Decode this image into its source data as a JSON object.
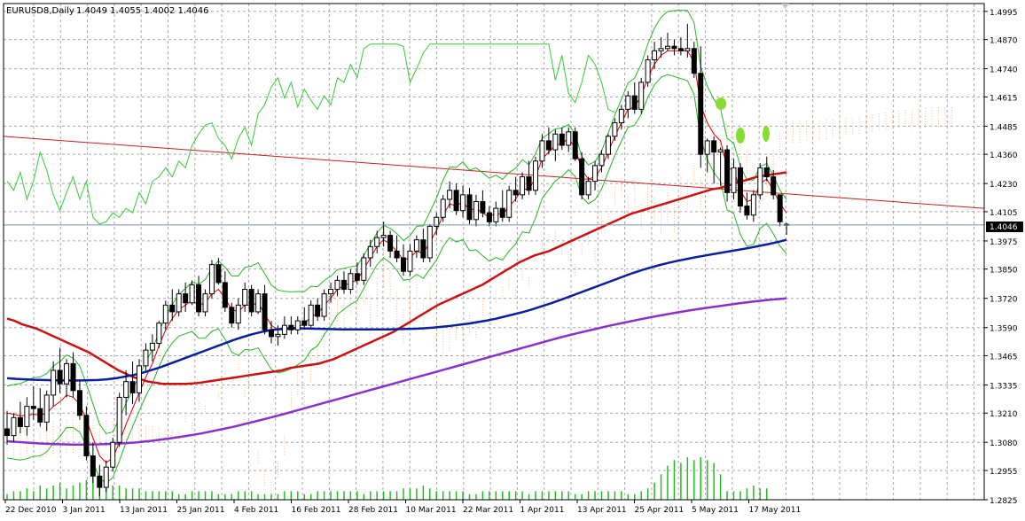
{
  "header": {
    "symbol": "EURUSD8,Daily",
    "ohlc": "1.4049 1.4055 1.4002 1.4046"
  },
  "current_price_label": "1.4046",
  "colors": {
    "bull_candle": "#ffffff",
    "bear_candle": "#000000",
    "ma_fast": "#d40000",
    "ma_mid": "#cc1111",
    "ma_slow": "#0a1fa0",
    "ma_long": "#8a32c8",
    "bollinger": "#22b822",
    "chikou": "#33cc33",
    "cloud": "#f4a460",
    "volume": "#22bb22",
    "trendline": "#c81e1e",
    "grid": "#a8a8a8"
  },
  "chart_data": {
    "type": "candlestick",
    "y_ticks": [
      "1.4995",
      "1.4870",
      "1.4740",
      "1.4615",
      "1.4485",
      "1.4360",
      "1.4230",
      "1.4105",
      "1.3975",
      "1.3850",
      "1.3720",
      "1.3590",
      "1.3465",
      "1.3335",
      "1.3210",
      "1.3080",
      "1.2955",
      "1.2825"
    ],
    "ylim": [
      1.2825,
      1.503
    ],
    "x_labels": [
      "22 Dec 2010",
      "3 Jan 2011",
      "13 Jan 2011",
      "25 Jan 2011",
      "4 Feb 2011",
      "16 Feb 2011",
      "28 Feb 2011",
      "10 Mar 2011",
      "22 Mar 2011",
      "1 Apr 2011",
      "13 Apr 2011",
      "25 Apr 2011",
      "5 May 2011",
      "17 May 2011"
    ],
    "grid": true,
    "ohlc": [
      [
        1.314,
        1.322,
        1.307,
        1.311
      ],
      [
        1.311,
        1.321,
        1.308,
        1.319
      ],
      [
        1.319,
        1.326,
        1.312,
        1.315
      ],
      [
        1.315,
        1.328,
        1.311,
        1.324
      ],
      [
        1.324,
        1.333,
        1.318,
        1.323
      ],
      [
        1.323,
        1.332,
        1.315,
        1.317
      ],
      [
        1.317,
        1.331,
        1.313,
        1.329
      ],
      [
        1.329,
        1.344,
        1.324,
        1.34
      ],
      [
        1.34,
        1.35,
        1.33,
        1.334
      ],
      [
        1.334,
        1.345,
        1.328,
        1.343
      ],
      [
        1.343,
        1.348,
        1.328,
        1.331
      ],
      [
        1.331,
        1.335,
        1.318,
        1.32
      ],
      [
        1.32,
        1.324,
        1.3,
        1.302
      ],
      [
        1.302,
        1.308,
        1.29,
        1.293
      ],
      [
        1.293,
        1.298,
        1.284,
        1.288
      ],
      [
        1.288,
        1.3,
        1.286,
        1.297
      ],
      [
        1.297,
        1.31,
        1.295,
        1.308
      ],
      [
        1.308,
        1.33,
        1.306,
        1.328
      ],
      [
        1.328,
        1.34,
        1.32,
        1.335
      ],
      [
        1.335,
        1.344,
        1.325,
        1.33
      ],
      [
        1.33,
        1.345,
        1.326,
        1.342
      ],
      [
        1.342,
        1.352,
        1.34,
        1.349
      ],
      [
        1.349,
        1.356,
        1.344,
        1.352
      ],
      [
        1.352,
        1.362,
        1.35,
        1.361
      ],
      [
        1.361,
        1.371,
        1.358,
        1.369
      ],
      [
        1.369,
        1.376,
        1.362,
        1.366
      ],
      [
        1.366,
        1.376,
        1.364,
        1.374
      ],
      [
        1.374,
        1.379,
        1.366,
        1.37
      ],
      [
        1.37,
        1.38,
        1.369,
        1.378
      ],
      [
        1.378,
        1.382,
        1.364,
        1.366
      ],
      [
        1.366,
        1.376,
        1.364,
        1.374
      ],
      [
        1.374,
        1.389,
        1.372,
        1.387
      ],
      [
        1.387,
        1.39,
        1.378,
        1.379
      ],
      [
        1.379,
        1.384,
        1.366,
        1.368
      ],
      [
        1.368,
        1.37,
        1.359,
        1.361
      ],
      [
        1.361,
        1.372,
        1.358,
        1.369
      ],
      [
        1.369,
        1.379,
        1.366,
        1.376
      ],
      [
        1.376,
        1.378,
        1.364,
        1.366
      ],
      [
        1.366,
        1.376,
        1.365,
        1.374
      ],
      [
        1.374,
        1.378,
        1.356,
        1.358
      ],
      [
        1.358,
        1.362,
        1.352,
        1.355
      ],
      [
        1.355,
        1.36,
        1.351,
        1.356
      ],
      [
        1.356,
        1.364,
        1.354,
        1.36
      ],
      [
        1.36,
        1.364,
        1.356,
        1.358
      ],
      [
        1.358,
        1.364,
        1.356,
        1.362
      ],
      [
        1.362,
        1.368,
        1.358,
        1.36
      ],
      [
        1.36,
        1.371,
        1.359,
        1.369
      ],
      [
        1.369,
        1.372,
        1.362,
        1.364
      ],
      [
        1.364,
        1.376,
        1.362,
        1.374
      ],
      [
        1.374,
        1.379,
        1.37,
        1.376
      ],
      [
        1.376,
        1.382,
        1.373,
        1.38
      ],
      [
        1.38,
        1.384,
        1.374,
        1.376
      ],
      [
        1.376,
        1.385,
        1.374,
        1.383
      ],
      [
        1.383,
        1.388,
        1.378,
        1.38
      ],
      [
        1.38,
        1.392,
        1.378,
        1.39
      ],
      [
        1.39,
        1.398,
        1.386,
        1.395
      ],
      [
        1.395,
        1.402,
        1.392,
        1.399
      ],
      [
        1.399,
        1.406,
        1.395,
        1.4
      ],
      [
        1.4,
        1.402,
        1.39,
        1.393
      ],
      [
        1.393,
        1.4,
        1.388,
        1.39
      ],
      [
        1.39,
        1.396,
        1.382,
        1.384
      ],
      [
        1.384,
        1.396,
        1.382,
        1.393
      ],
      [
        1.393,
        1.4,
        1.39,
        1.398
      ],
      [
        1.398,
        1.403,
        1.388,
        1.39
      ],
      [
        1.39,
        1.405,
        1.388,
        1.404
      ],
      [
        1.404,
        1.41,
        1.4,
        1.408
      ],
      [
        1.408,
        1.418,
        1.406,
        1.416
      ],
      [
        1.416,
        1.424,
        1.412,
        1.42
      ],
      [
        1.42,
        1.423,
        1.409,
        1.411
      ],
      [
        1.411,
        1.422,
        1.408,
        1.418
      ],
      [
        1.418,
        1.421,
        1.405,
        1.407
      ],
      [
        1.407,
        1.418,
        1.404,
        1.415
      ],
      [
        1.415,
        1.42,
        1.408,
        1.41
      ],
      [
        1.41,
        1.413,
        1.404,
        1.406
      ],
      [
        1.406,
        1.415,
        1.404,
        1.412
      ],
      [
        1.412,
        1.42,
        1.406,
        1.408
      ],
      [
        1.408,
        1.422,
        1.406,
        1.42
      ],
      [
        1.42,
        1.426,
        1.415,
        1.418
      ],
      [
        1.418,
        1.428,
        1.416,
        1.426
      ],
      [
        1.426,
        1.433,
        1.418,
        1.42
      ],
      [
        1.42,
        1.435,
        1.418,
        1.433
      ],
      [
        1.433,
        1.445,
        1.43,
        1.442
      ],
      [
        1.442,
        1.448,
        1.436,
        1.438
      ],
      [
        1.438,
        1.447,
        1.433,
        1.445
      ],
      [
        1.445,
        1.448,
        1.438,
        1.44
      ],
      [
        1.44,
        1.448,
        1.437,
        1.446
      ],
      [
        1.446,
        1.448,
        1.433,
        1.434
      ],
      [
        1.434,
        1.437,
        1.416,
        1.418
      ],
      [
        1.418,
        1.426,
        1.416,
        1.424
      ],
      [
        1.424,
        1.433,
        1.42,
        1.431
      ],
      [
        1.431,
        1.438,
        1.428,
        1.436
      ],
      [
        1.436,
        1.445,
        1.434,
        1.444
      ],
      [
        1.444,
        1.452,
        1.442,
        1.45
      ],
      [
        1.45,
        1.458,
        1.447,
        1.456
      ],
      [
        1.456,
        1.464,
        1.452,
        1.462
      ],
      [
        1.462,
        1.468,
        1.454,
        1.456
      ],
      [
        1.456,
        1.47,
        1.454,
        1.468
      ],
      [
        1.468,
        1.48,
        1.466,
        1.478
      ],
      [
        1.478,
        1.486,
        1.474,
        1.482
      ],
      [
        1.482,
        1.488,
        1.479,
        1.483
      ],
      [
        1.483,
        1.49,
        1.482,
        1.484
      ],
      [
        1.484,
        1.487,
        1.48,
        1.483
      ],
      [
        1.483,
        1.488,
        1.48,
        1.482
      ],
      [
        1.482,
        1.494,
        1.479,
        1.483
      ],
      [
        1.483,
        1.486,
        1.47,
        1.472
      ],
      [
        1.472,
        1.484,
        1.43,
        1.436
      ],
      [
        1.436,
        1.443,
        1.428,
        1.442
      ],
      [
        1.442,
        1.444,
        1.423,
        1.437
      ],
      [
        1.437,
        1.439,
        1.422,
        1.438
      ],
      [
        1.438,
        1.44,
        1.415,
        1.419
      ],
      [
        1.419,
        1.434,
        1.416,
        1.43
      ],
      [
        1.43,
        1.432,
        1.41,
        1.413
      ],
      [
        1.413,
        1.419,
        1.407,
        1.409
      ],
      [
        1.409,
        1.42,
        1.406,
        1.418
      ],
      [
        1.418,
        1.432,
        1.416,
        1.43
      ],
      [
        1.43,
        1.435,
        1.424,
        1.426
      ],
      [
        1.426,
        1.429,
        1.416,
        1.418
      ],
      [
        1.418,
        1.418,
        1.404,
        1.406
      ],
      [
        1.4049,
        1.4055,
        1.4002,
        1.4046
      ]
    ],
    "volume": [
      2,
      3,
      3,
      4,
      3,
      5,
      4,
      5,
      6,
      4,
      5,
      6,
      7,
      9,
      8,
      6,
      5,
      5,
      4,
      4,
      4,
      3,
      3,
      3,
      3,
      3,
      2,
      2,
      3,
      3,
      3,
      3,
      2,
      2,
      2,
      3,
      3,
      3,
      2,
      2,
      2,
      2,
      3,
      3,
      3,
      2,
      2,
      3,
      3,
      3,
      3,
      3,
      3,
      3,
      2,
      3,
      3,
      3,
      3,
      3,
      4,
      4,
      4,
      5,
      4,
      3,
      3,
      3,
      3,
      3,
      2,
      2,
      3,
      3,
      3,
      3,
      3,
      3,
      3,
      2,
      3,
      3,
      3,
      3,
      3,
      3,
      2,
      2,
      3,
      3,
      3,
      3,
      3,
      3,
      2,
      2,
      3,
      4,
      6,
      9,
      12,
      14,
      13,
      15,
      14,
      15,
      14,
      13,
      9,
      3,
      3,
      3,
      4,
      5,
      4,
      4
    ],
    "ma_fast": [
      1.321,
      1.3205,
      1.3198,
      1.32,
      1.3205,
      1.32,
      1.321,
      1.324,
      1.326,
      1.329,
      1.328,
      1.325,
      1.318,
      1.31,
      1.302,
      1.299,
      1.301,
      1.308,
      1.316,
      1.323,
      1.33,
      1.337,
      1.343,
      1.351,
      1.358,
      1.363,
      1.367,
      1.369,
      1.371,
      1.369,
      1.37,
      1.374,
      1.376,
      1.372,
      1.367,
      1.366,
      1.369,
      1.369,
      1.37,
      1.365,
      1.36,
      1.358,
      1.358,
      1.3585,
      1.3595,
      1.3605,
      1.364,
      1.365,
      1.369,
      1.372,
      1.376,
      1.3775,
      1.379,
      1.38,
      1.385,
      1.39,
      1.395,
      1.398,
      1.396,
      1.393,
      1.389,
      1.39,
      1.393,
      1.392,
      1.397,
      1.402,
      1.409,
      1.414,
      1.413,
      1.415,
      1.411,
      1.412,
      1.41,
      1.408,
      1.41,
      1.409,
      1.413,
      1.416,
      1.421,
      1.42,
      1.426,
      1.434,
      1.437,
      1.44,
      1.441,
      1.443,
      1.439,
      1.429,
      1.425,
      1.426,
      1.43,
      1.437,
      1.444,
      1.45,
      1.456,
      1.457,
      1.462,
      1.47,
      1.476,
      1.48,
      1.482,
      1.482,
      1.482,
      1.482,
      1.477,
      1.458,
      1.45,
      1.445,
      1.442,
      1.43,
      1.429,
      1.42,
      1.415,
      1.416,
      1.423,
      1.425,
      1.42,
      1.414,
      1.41
    ],
    "ma_mid": [
      1.363,
      1.362,
      1.3605,
      1.3595,
      1.3585,
      1.357,
      1.3555,
      1.354,
      1.3525,
      1.351,
      1.3495,
      1.348,
      1.346,
      1.344,
      1.342,
      1.34,
      1.3385,
      1.337,
      1.336,
      1.335,
      1.3345,
      1.334,
      1.334,
      1.334,
      1.334,
      1.3342,
      1.3345,
      1.335,
      1.3355,
      1.336,
      1.3365,
      1.337,
      1.3375,
      1.338,
      1.3385,
      1.339,
      1.3395,
      1.34,
      1.341,
      1.3415,
      1.342,
      1.3425,
      1.343,
      1.344,
      1.345,
      1.3465,
      1.348,
      1.3495,
      1.351,
      1.3525,
      1.354,
      1.3555,
      1.357,
      1.359,
      1.361,
      1.363,
      1.365,
      1.367,
      1.369,
      1.3705,
      1.372,
      1.3735,
      1.375,
      1.3765,
      1.378,
      1.38,
      1.382,
      1.384,
      1.386,
      1.388,
      1.3895,
      1.391,
      1.392,
      1.393,
      1.3945,
      1.396,
      1.3975,
      1.399,
      1.4005,
      1.402,
      1.4035,
      1.405,
      1.4065,
      1.408,
      1.4095,
      1.4105,
      1.4115,
      1.4125,
      1.4135,
      1.4145,
      1.4155,
      1.4165,
      1.4175,
      1.4185,
      1.4195,
      1.4205,
      1.421,
      1.422,
      1.423,
      1.424,
      1.425,
      1.426,
      1.4265,
      1.427,
      1.4275,
      1.428
    ],
    "ma_slow": [
      1.3365,
      1.3362,
      1.336,
      1.3358,
      1.3357,
      1.3356,
      1.3355,
      1.3355,
      1.3355,
      1.3356,
      1.3357,
      1.336,
      1.3365,
      1.3372,
      1.338,
      1.339,
      1.3402,
      1.3415,
      1.343,
      1.3445,
      1.346,
      1.3475,
      1.349,
      1.3505,
      1.352,
      1.3535,
      1.3548,
      1.356,
      1.357,
      1.3578,
      1.3583,
      1.3586,
      1.3587,
      1.3586,
      1.3585,
      1.3584,
      1.3583,
      1.3582,
      1.3582,
      1.3582,
      1.3582,
      1.3582,
      1.3582,
      1.3583,
      1.3584,
      1.3585,
      1.3587,
      1.359,
      1.3594,
      1.3598,
      1.3603,
      1.3608,
      1.3615,
      1.3622,
      1.363,
      1.364,
      1.365,
      1.366,
      1.3672,
      1.3685,
      1.3698,
      1.3712,
      1.3727,
      1.3742,
      1.3757,
      1.3772,
      1.3787,
      1.3802,
      1.3817,
      1.3832,
      1.3845,
      1.3857,
      1.3868,
      1.3878,
      1.3887,
      1.3895,
      1.3903,
      1.391,
      1.3917,
      1.3924,
      1.3931,
      1.3938,
      1.3945,
      1.3953,
      1.3961,
      1.397,
      1.398
    ],
    "ma_long": [
      1.3085,
      1.308,
      1.3075,
      1.3072,
      1.307,
      1.307,
      1.3072,
      1.3075,
      1.308,
      1.3088,
      1.3097,
      1.3108,
      1.312,
      1.3135,
      1.315,
      1.3168,
      1.3186,
      1.3205,
      1.3225,
      1.3245,
      1.3265,
      1.3285,
      1.3305,
      1.3325,
      1.3345,
      1.3365,
      1.3385,
      1.3405,
      1.3425,
      1.3445,
      1.3465,
      1.3485,
      1.3505,
      1.3525,
      1.3545,
      1.3563,
      1.358,
      1.3597,
      1.3612,
      1.3627,
      1.3641,
      1.3654,
      1.3666,
      1.3677,
      1.3687,
      1.3697,
      1.3706,
      1.3714,
      1.372
    ]
  }
}
